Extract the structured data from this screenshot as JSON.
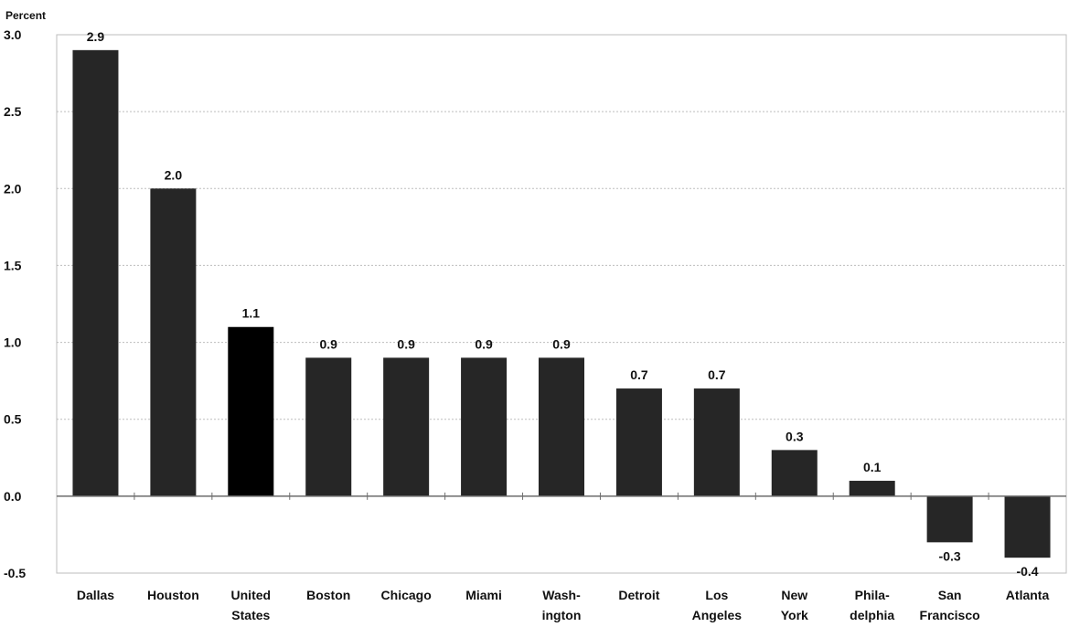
{
  "chart_data": {
    "type": "bar",
    "ylabel": "Percent",
    "ylim": [
      -0.5,
      3.0
    ],
    "y_ticks": [
      "-0.5",
      "0.0",
      "0.5",
      "1.0",
      "1.5",
      "2.0",
      "2.5",
      "3.0"
    ],
    "grid": true,
    "categories": [
      [
        "Dallas"
      ],
      [
        "Houston"
      ],
      [
        "United",
        "States"
      ],
      [
        "Boston"
      ],
      [
        "Chicago"
      ],
      [
        "Miami"
      ],
      [
        "Wash-",
        "ington"
      ],
      [
        "Detroit"
      ],
      [
        "Los",
        "Angeles"
      ],
      [
        "New",
        "York"
      ],
      [
        "Phila-",
        "delphia"
      ],
      [
        "San",
        "Francisco"
      ],
      [
        "Atlanta"
      ]
    ],
    "values": [
      2.9,
      2.0,
      1.1,
      0.9,
      0.9,
      0.9,
      0.9,
      0.7,
      0.7,
      0.3,
      0.1,
      -0.3,
      -0.4
    ],
    "value_labels": [
      "2.9",
      "2.0",
      "1.1",
      "0.9",
      "0.9",
      "0.9",
      "0.9",
      "0.7",
      "0.7",
      "0.3",
      "0.1",
      "-0.3",
      "-0.4"
    ],
    "colors": {
      "bar": "#262626",
      "bar_highlight": "#000000",
      "grid": "#bdbdbd",
      "axis": "#6e6e6e"
    },
    "highlight_index": 2
  }
}
